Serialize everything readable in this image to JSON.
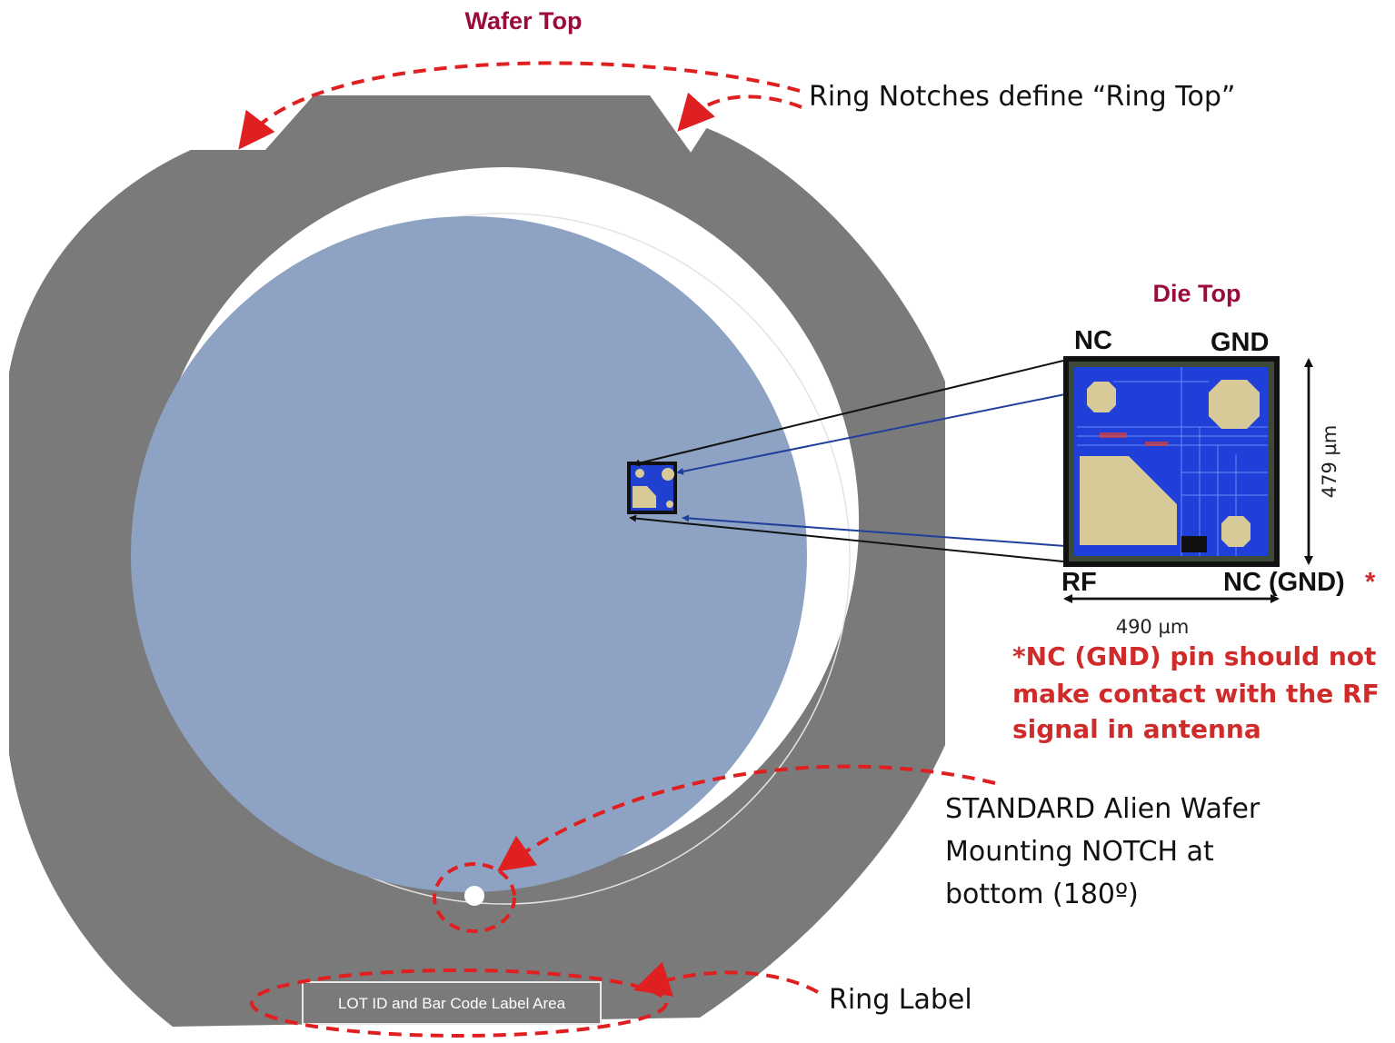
{
  "labels": {
    "wafer_top": "Wafer Top",
    "ring_notches": "Ring Notches define “Ring Top”",
    "die_top": "Die Top",
    "lot_id_area": "LOT ID and Bar Code Label Area",
    "ring_label": "Ring Label"
  },
  "notch_note": {
    "line1": "STANDARD Alien Wafer",
    "line2": "Mounting NOTCH at",
    "line3": "bottom (180º)"
  },
  "die": {
    "pin_top_left": "NC",
    "pin_top_right": "GND",
    "pin_bottom_left": "RF",
    "pin_bottom_right": "NC (GND)",
    "asterisk": "*",
    "height_dim": "479 µm",
    "width_dim": "490 µm"
  },
  "warning": {
    "line1": "*NC (GND) pin should not",
    "line2": "make contact with the RF",
    "line3": "signal in antenna"
  },
  "colors": {
    "title_accent": "#9b0a3c",
    "annotation_red": "#e02020",
    "warning_red": "#d02b2b",
    "ring_gray": "#7a7a7a",
    "wafer_blue": "#8ea3c3",
    "die_blue": "#1f3fd8",
    "pad_tan": "#d8ca98"
  }
}
